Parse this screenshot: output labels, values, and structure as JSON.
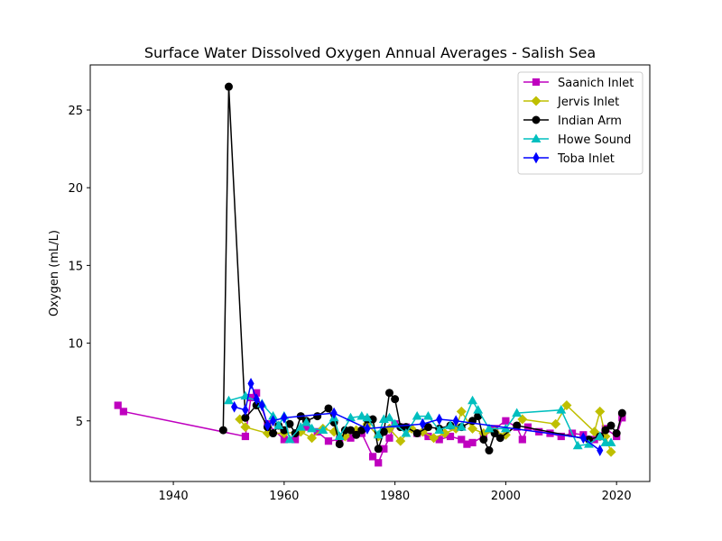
{
  "chart_data": {
    "type": "line",
    "title": "Surface Water Dissolved Oxygen Annual Averages - Salish Sea",
    "xlabel": "",
    "ylabel": "Oxygen (mL/L)",
    "xlim": [
      1925,
      2026
    ],
    "ylim": [
      1.1,
      27.9
    ],
    "xticks": [
      1940,
      1960,
      1980,
      2000,
      2020
    ],
    "yticks": [
      5,
      10,
      15,
      20,
      25
    ],
    "grid": false,
    "legend": "top-right",
    "series": [
      {
        "name": "Saanich Inlet",
        "color": "#bf00bf",
        "marker": "square",
        "x": [
          1930,
          1931,
          1953,
          1954,
          1955,
          1957,
          1960,
          1962,
          1964,
          1966,
          1968,
          1970,
          1972,
          1974,
          1976,
          1977,
          1978,
          1979,
          1980,
          1982,
          1984,
          1986,
          1988,
          1990,
          1992,
          1993,
          1994,
          1996,
          1998,
          2000,
          2002,
          2003,
          2004,
          2006,
          2008,
          2010,
          2012,
          2014,
          2016,
          2018,
          2020,
          2021
        ],
        "y": [
          6.0,
          5.6,
          4.0,
          6.5,
          6.8,
          4.8,
          3.8,
          3.8,
          4.6,
          4.3,
          3.7,
          3.8,
          3.9,
          4.2,
          2.7,
          2.3,
          3.2,
          3.9,
          4.8,
          4.6,
          4.2,
          4.0,
          3.8,
          4.0,
          3.8,
          3.5,
          3.6,
          4.0,
          4.5,
          5.0,
          4.6,
          3.8,
          4.6,
          4.3,
          4.2,
          4.0,
          4.2,
          4.1,
          3.8,
          4.5,
          4.0,
          5.2
        ]
      },
      {
        "name": "Jervis Inlet",
        "color": "#bfbf00",
        "marker": "diamond",
        "x": [
          1952,
          1953,
          1957,
          1960,
          1963,
          1965,
          1967,
          1969,
          1971,
          1973,
          1975,
          1977,
          1979,
          1981,
          1983,
          1985,
          1987,
          1989,
          1991,
          1992,
          1994,
          1996,
          1998,
          2000,
          2003,
          2009,
          2011,
          2016,
          2017,
          2018,
          2019
        ],
        "y": [
          5.1,
          4.6,
          4.2,
          4.2,
          4.3,
          3.9,
          4.5,
          4.3,
          4.0,
          4.4,
          4.8,
          4.0,
          4.5,
          3.7,
          4.5,
          4.3,
          3.9,
          4.2,
          4.5,
          5.6,
          4.5,
          4.2,
          4.3,
          4.1,
          5.1,
          4.8,
          6.0,
          4.3,
          5.6,
          4.0,
          3.0
        ]
      },
      {
        "name": "Indian Arm",
        "color": "#000000",
        "marker": "circle",
        "x": [
          1949,
          1950,
          1953,
          1955,
          1957,
          1958,
          1959,
          1960,
          1961,
          1962,
          1963,
          1964,
          1966,
          1968,
          1969,
          1970,
          1971,
          1972,
          1973,
          1974,
          1975,
          1976,
          1977,
          1978,
          1979,
          1980,
          1981,
          1982,
          1984,
          1986,
          1988,
          1990,
          1992,
          1994,
          1995,
          1996,
          1997,
          1998,
          1999,
          2002,
          2015,
          2017,
          2018,
          2019,
          2020,
          2021
        ],
        "y": [
          4.4,
          26.5,
          5.2,
          6.0,
          4.6,
          4.2,
          4.7,
          4.4,
          4.8,
          4.2,
          5.3,
          5.0,
          5.3,
          5.8,
          4.9,
          3.5,
          4.4,
          4.4,
          4.1,
          4.4,
          5.1,
          5.1,
          3.2,
          4.3,
          6.8,
          6.4,
          4.6,
          4.6,
          4.2,
          4.6,
          4.5,
          4.7,
          4.6,
          5.0,
          5.3,
          3.8,
          3.1,
          4.2,
          3.9,
          4.7,
          3.8,
          4.0,
          4.4,
          4.7,
          4.2,
          5.5
        ]
      },
      {
        "name": "Howe Sound",
        "color": "#00bfbf",
        "marker": "triangle",
        "x": [
          1950,
          1953,
          1956,
          1958,
          1959,
          1960,
          1961,
          1963,
          1964,
          1965,
          1967,
          1969,
          1970,
          1972,
          1974,
          1975,
          1977,
          1978,
          1979,
          1980,
          1982,
          1984,
          1986,
          1988,
          1990,
          1992,
          1994,
          1995,
          1997,
          2000,
          2002,
          2010,
          2013,
          2015,
          2017,
          2018,
          2019
        ],
        "y": [
          6.3,
          6.6,
          6.1,
          5.3,
          4.7,
          5.3,
          3.8,
          4.6,
          4.9,
          4.5,
          4.4,
          5.2,
          4.0,
          5.2,
          5.3,
          5.2,
          4.1,
          5.1,
          5.2,
          4.8,
          4.2,
          5.3,
          5.3,
          4.4,
          4.7,
          4.6,
          6.3,
          5.7,
          4.5,
          4.5,
          5.5,
          5.7,
          3.4,
          3.5,
          4.0,
          3.6,
          3.6
        ]
      },
      {
        "name": "Toba Inlet",
        "color": "#0000ff",
        "marker": "thin-diamond",
        "x": [
          1951,
          1953,
          1954,
          1955,
          1956,
          1957,
          1958,
          1960,
          1969,
          1975,
          1985,
          1988,
          1991,
          2014,
          2017
        ],
        "y": [
          5.9,
          5.7,
          7.4,
          6.4,
          6.0,
          4.7,
          5.0,
          5.2,
          5.5,
          4.5,
          4.8,
          5.1,
          5.0,
          3.9,
          3.1
        ]
      }
    ]
  }
}
